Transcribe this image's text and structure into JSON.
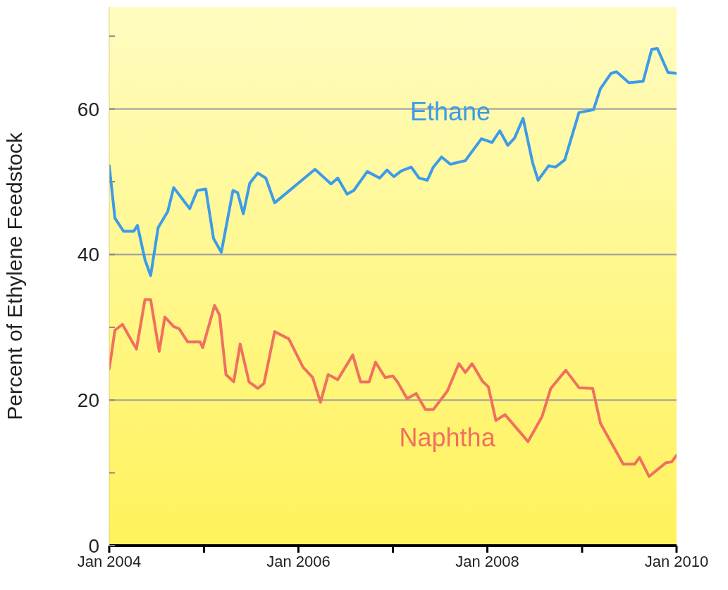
{
  "chart_data": {
    "type": "line",
    "ylabel": "Percent of Ethylene Feedstock",
    "xlim": [
      "2004-01",
      "2010-01"
    ],
    "xticks": [
      {
        "value": "2004-01",
        "label": "Jan 2004"
      },
      {
        "value": "2005-01",
        "label": null
      },
      {
        "value": "2006-01",
        "label": "Jan 2006"
      },
      {
        "value": "2007-01",
        "label": null
      },
      {
        "value": "2008-01",
        "label": "Jan 2008"
      },
      {
        "value": "2009-01",
        "label": null
      },
      {
        "value": "2010-01",
        "label": "Jan 2010"
      }
    ],
    "ylim": [
      0,
      74
    ],
    "yticks": [
      0,
      {
        "value": 10,
        "label": null
      },
      20,
      {
        "value": 30,
        "label": null
      },
      40,
      {
        "value": 50,
        "label": null
      },
      60,
      {
        "value": 70,
        "label": null
      }
    ],
    "grid": "y",
    "legend": false,
    "marker": "none",
    "line_style": "solid",
    "series": [
      {
        "name": "Ethane",
        "color": "#3d9be9",
        "x": [
          "2004-01-01",
          "2004-01-23",
          "2004-02-25",
          "2004-04-05",
          "2004-04-19",
          "2004-05-18",
          "2004-06-09",
          "2004-07-08",
          "2004-08-14",
          "2004-09-06",
          "2004-11-07",
          "2004-12-06",
          "2005-01-08",
          "2005-02-07",
          "2005-03-09",
          "2005-04-23",
          "2005-05-11",
          "2005-06-02",
          "2005-06-27",
          "2005-07-28",
          "2005-08-28",
          "2005-10-01",
          "2006-03-06",
          "2006-05-07",
          "2006-06-02",
          "2006-07-08",
          "2006-08-03",
          "2006-09-24",
          "2006-11-11",
          "2006-12-09",
          "2007-01-05",
          "2007-02-03",
          "2007-03-13",
          "2007-04-12",
          "2007-05-14",
          "2007-06-06",
          "2007-07-08",
          "2007-08-11",
          "2007-10-08",
          "2007-12-09",
          "2008-01-19",
          "2008-02-18",
          "2008-03-20",
          "2008-04-15",
          "2008-05-18",
          "2008-06-24",
          "2008-07-15",
          "2008-08-25",
          "2008-09-20",
          "2008-10-26",
          "2008-12-20",
          "2009-02-14",
          "2009-03-13",
          "2009-04-23",
          "2009-05-14",
          "2009-07-01",
          "2009-08-25",
          "2009-09-27",
          "2009-10-19",
          "2009-11-29",
          "2010-01-01"
        ],
        "values": [
          52.2,
          45,
          43.2,
          43.2,
          44,
          39.3,
          37.1,
          43.7,
          45.9,
          49.2,
          46.3,
          48.8,
          49,
          42.2,
          40.3,
          48.8,
          48.5,
          45.6,
          49.8,
          51.2,
          50.5,
          47.1,
          51.7,
          49.7,
          50.5,
          48.3,
          48.8,
          51.4,
          50.5,
          51.6,
          50.7,
          51.5,
          52,
          50.5,
          50.2,
          52,
          53.4,
          52.4,
          52.9,
          55.9,
          55.4,
          57,
          55,
          56,
          58.7,
          52.6,
          50.2,
          52.2,
          52,
          53,
          59.5,
          59.9,
          62.8,
          64.9,
          65.1,
          63.6,
          63.8,
          68.2,
          68.3,
          65,
          64.9
        ]
      },
      {
        "name": "Naphtha",
        "color": "#f07060",
        "x": [
          "2004-01-01",
          "2004-01-23",
          "2004-02-21",
          "2004-04-15",
          "2004-05-18",
          "2004-06-09",
          "2004-07-12",
          "2004-08-03",
          "2004-09-06",
          "2004-09-27",
          "2004-10-30",
          "2004-12-17",
          "2004-12-27",
          "2005-02-11",
          "2005-03-02",
          "2005-03-27",
          "2005-04-26",
          "2005-05-21",
          "2005-06-24",
          "2005-07-28",
          "2005-08-21",
          "2005-10-01",
          "2005-11-25",
          "2006-01-19",
          "2006-02-25",
          "2006-03-27",
          "2006-04-26",
          "2006-06-02",
          "2006-07-30",
          "2006-08-29",
          "2006-10-01",
          "2006-10-26",
          "2006-12-02",
          "2007-01-01",
          "2007-01-19",
          "2007-02-25",
          "2007-04-01",
          "2007-05-07",
          "2007-06-06",
          "2007-07-30",
          "2007-09-13",
          "2007-10-08",
          "2007-11-03",
          "2007-12-13",
          "2008-01-05",
          "2008-02-03",
          "2008-03-09",
          "2008-06-06",
          "2008-07-30",
          "2008-09-02",
          "2008-10-30",
          "2008-12-20",
          "2009-02-11",
          "2009-03-13",
          "2009-06-09",
          "2009-07-23",
          "2009-08-11",
          "2009-09-17",
          "2009-11-21",
          "2009-12-13",
          "2010-01-01"
        ],
        "values": [
          24.3,
          29.6,
          30.4,
          27,
          33.8,
          33.8,
          26.7,
          31.4,
          30.1,
          29.8,
          28,
          28,
          27.2,
          33,
          31.7,
          23.5,
          22.5,
          27.7,
          22.5,
          21.6,
          22.3,
          29.4,
          28.4,
          24.5,
          23.1,
          19.7,
          23.5,
          22.8,
          26.2,
          22.5,
          22.5,
          25.2,
          23.1,
          23.3,
          22.5,
          20.2,
          20.9,
          18.7,
          18.7,
          21.2,
          25,
          23.8,
          25,
          22.6,
          21.8,
          17.2,
          18,
          14.3,
          17.7,
          21.6,
          24.1,
          21.7,
          21.6,
          16.8,
          11.2,
          11.2,
          12.1,
          9.5,
          11.4,
          11.5,
          12.4
        ]
      }
    ]
  }
}
